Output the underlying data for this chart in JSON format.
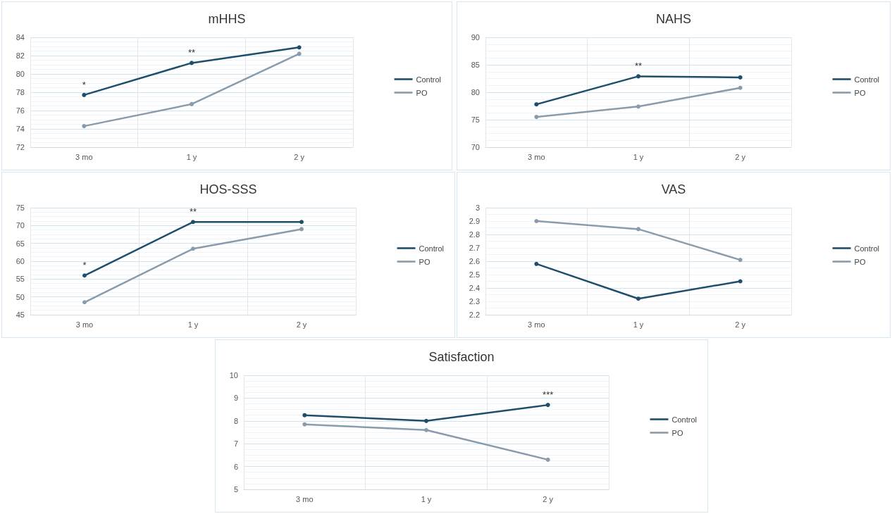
{
  "chart_data": [
    {
      "type": "line",
      "title": "mHHS",
      "categories": [
        "3 mo",
        "1 y",
        "2 y"
      ],
      "series": [
        {
          "name": "Control",
          "color": "#1f4e6b",
          "values": [
            77.7,
            81.2,
            82.9
          ]
        },
        {
          "name": "PO",
          "color": "#8a9bab",
          "values": [
            74.3,
            76.7,
            82.2
          ]
        }
      ],
      "ylim": [
        72,
        84
      ],
      "yticks": [
        72,
        74,
        76,
        78,
        80,
        82,
        84
      ],
      "grid": true,
      "legend": "right",
      "marker": "circle",
      "annotations": [
        {
          "text": "*",
          "x": "3 mo",
          "y": 77.7
        },
        {
          "text": "**",
          "x": "1 y",
          "y": 81.2
        }
      ]
    },
    {
      "type": "line",
      "title": "NAHS",
      "categories": [
        "3 mo",
        "1 y",
        "2 y"
      ],
      "series": [
        {
          "name": "Control",
          "color": "#1f4e6b",
          "values": [
            77.8,
            82.9,
            82.7
          ]
        },
        {
          "name": "PO",
          "color": "#8a9bab",
          "values": [
            75.5,
            77.4,
            80.8
          ]
        }
      ],
      "ylim": [
        70,
        90
      ],
      "yticks": [
        70,
        75,
        80,
        85,
        90
      ],
      "grid": true,
      "legend": "right",
      "marker": "circle",
      "annotations": [
        {
          "text": "**",
          "x": "1 y",
          "y": 82.9
        }
      ]
    },
    {
      "type": "line",
      "title": "HOS-SSS",
      "categories": [
        "3 mo",
        "1 y",
        "2 y"
      ],
      "series": [
        {
          "name": "Control",
          "color": "#1f4e6b",
          "values": [
            56,
            71,
            71
          ]
        },
        {
          "name": "PO",
          "color": "#8a9bab",
          "values": [
            48.5,
            63.5,
            69
          ]
        }
      ],
      "ylim": [
        45,
        75
      ],
      "yticks": [
        45,
        50,
        55,
        60,
        65,
        70,
        75
      ],
      "grid": true,
      "legend": "right",
      "marker": "circle",
      "annotations": [
        {
          "text": "*",
          "x": "3 mo",
          "y": 56
        },
        {
          "text": "**",
          "x": "1 y",
          "y": 71
        }
      ]
    },
    {
      "type": "line",
      "title": "VAS",
      "categories": [
        "3 mo",
        "1 y",
        "2 y"
      ],
      "series": [
        {
          "name": "Control",
          "color": "#1f4e6b",
          "values": [
            2.58,
            2.32,
            2.45
          ]
        },
        {
          "name": "PO",
          "color": "#8a9bab",
          "values": [
            2.9,
            2.84,
            2.61
          ]
        }
      ],
      "ylim": [
        2.2,
        3
      ],
      "yticks": [
        2.2,
        2.3,
        2.4,
        2.5,
        2.6,
        2.7,
        2.8,
        2.9,
        3
      ],
      "grid": true,
      "legend": "right",
      "marker": "circle"
    },
    {
      "type": "line",
      "title": "Satisfaction",
      "categories": [
        "3 mo",
        "1 y",
        "2 y"
      ],
      "series": [
        {
          "name": "Control",
          "color": "#1f4e6b",
          "values": [
            8.25,
            8.0,
            8.7
          ]
        },
        {
          "name": "PO",
          "color": "#8a9bab",
          "values": [
            7.85,
            7.6,
            6.3
          ]
        }
      ],
      "ylim": [
        5,
        10
      ],
      "yticks": [
        5,
        6,
        7,
        8,
        9,
        10
      ],
      "grid": true,
      "legend": "right",
      "marker": "circle",
      "annotations": [
        {
          "text": "***",
          "x": "2 y",
          "y": 8.7
        }
      ]
    }
  ]
}
